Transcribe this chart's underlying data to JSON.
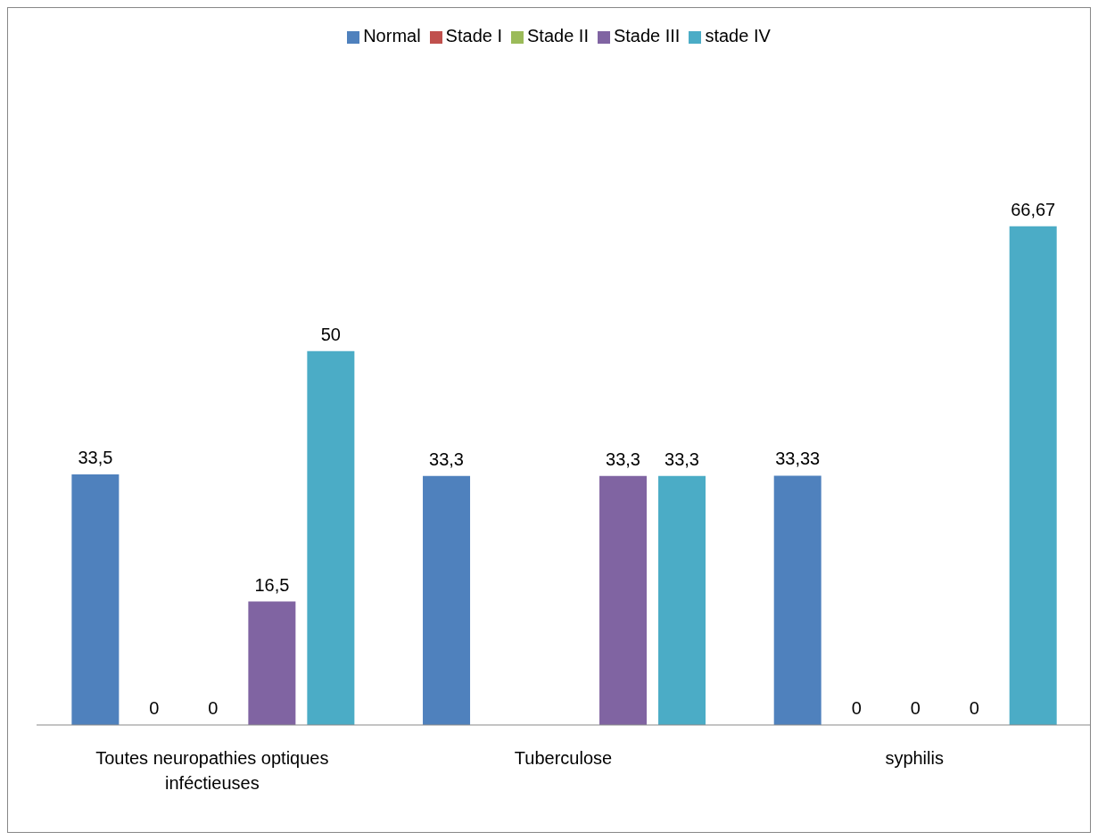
{
  "chart_data": {
    "type": "bar",
    "categories": [
      "Toutes neuropathies optiques inféctieuses",
      "Tuberculose",
      "syphilis"
    ],
    "series": [
      {
        "name": "Normal",
        "color": "#4f81bd",
        "values": [
          33.5,
          33.3,
          33.33
        ],
        "value_labels": [
          "33,5",
          "33,3",
          "33,33"
        ]
      },
      {
        "name": "Stade I",
        "color": "#c0504d",
        "values": [
          0,
          null,
          0
        ],
        "value_labels": [
          "0",
          null,
          "0"
        ]
      },
      {
        "name": "Stade II",
        "color": "#9bbb59",
        "values": [
          0,
          null,
          0
        ],
        "value_labels": [
          "0",
          null,
          "0"
        ]
      },
      {
        "name": "Stade III",
        "color": "#8064a2",
        "values": [
          16.5,
          33.3,
          0
        ],
        "value_labels": [
          "16,5",
          "33,3",
          "0"
        ]
      },
      {
        "name": "stade IV",
        "color": "#4bacc6",
        "values": [
          50,
          33.3,
          66.67
        ],
        "value_labels": [
          "50",
          "33,3",
          "66,67"
        ]
      }
    ],
    "legend": "top",
    "grid": false
  }
}
